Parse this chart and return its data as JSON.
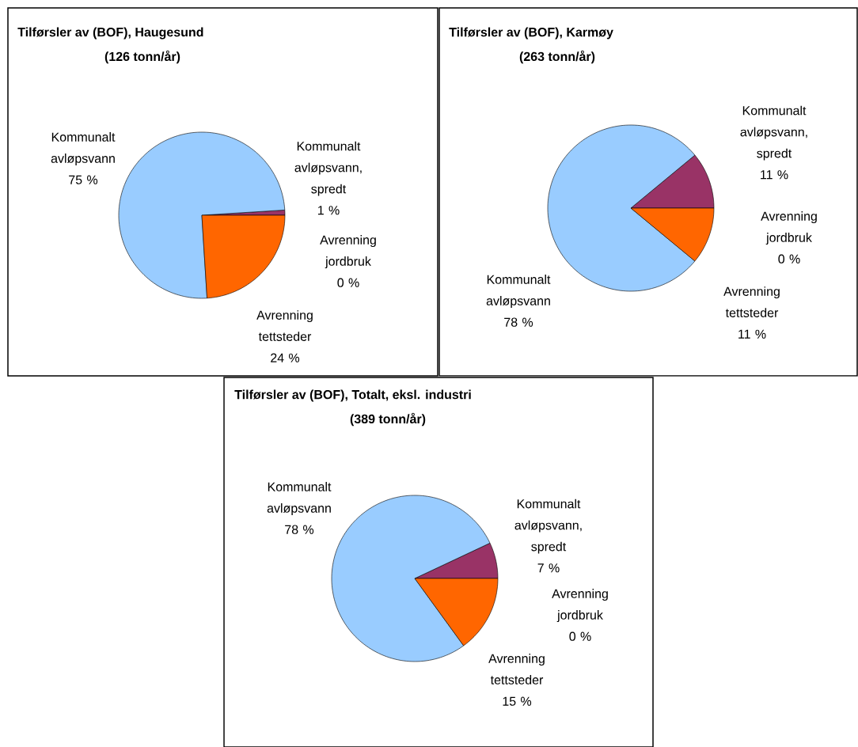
{
  "chart_data": [
    {
      "type": "pie",
      "title": "Tilførsler av (BOF), Haugesund",
      "subtitle": "(126 tonn/år)",
      "categories": [
        "Avrenning jordbruk",
        "Kommunalt avløpsvann, spredt",
        "Kommunalt avløpsvann",
        "Avrenning tettsteder"
      ],
      "values": [
        0,
        1,
        75,
        24
      ],
      "value_labels": [
        "0 %",
        "1 %",
        "75 %",
        "24 %"
      ],
      "colors": [
        "#ffffcc",
        "#993366",
        "#99ccff",
        "#ff6600"
      ]
    },
    {
      "type": "pie",
      "title": "Tilførsler av (BOF), Karmøy",
      "subtitle": "(263 tonn/år)",
      "categories": [
        "Avrenning jordbruk",
        "Kommunalt avløpsvann, spredt",
        "Kommunalt avløpsvann",
        "Avrenning tettsteder"
      ],
      "values": [
        0,
        11,
        78,
        11
      ],
      "value_labels": [
        "0 %",
        "11 %",
        "78 %",
        "11 %"
      ],
      "colors": [
        "#ffffcc",
        "#993366",
        "#99ccff",
        "#ff6600"
      ]
    },
    {
      "type": "pie",
      "title": "Tilførsler av (BOF), Totalt, eksl. industri",
      "subtitle": "(389 tonn/år)",
      "categories": [
        "Avrenning jordbruk",
        "Kommunalt avløpsvann, spredt",
        "Kommunalt avløpsvann",
        "Avrenning tettsteder"
      ],
      "values": [
        0,
        7,
        78,
        15
      ],
      "value_labels": [
        "0 %",
        "7 %",
        "78 %",
        "15 %"
      ],
      "colors": [
        "#ffffcc",
        "#993366",
        "#99ccff",
        "#ff6600"
      ]
    }
  ]
}
